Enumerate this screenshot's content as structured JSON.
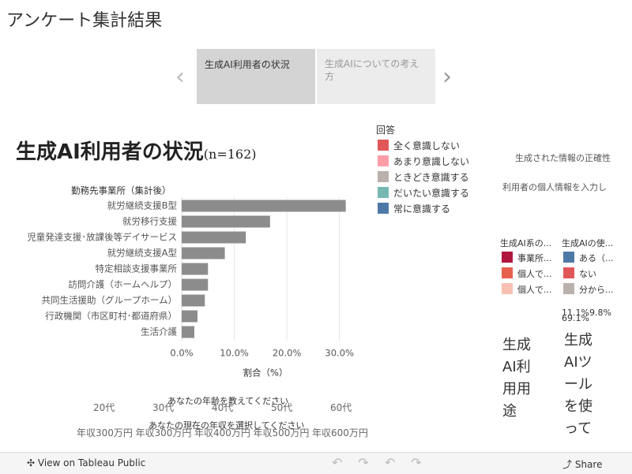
{
  "header": {
    "title": "アンケート集計結果"
  },
  "tabs": [
    "生成AI利用者の状況",
    "生成AIについての考え方"
  ],
  "chart_data": {
    "type": "bar",
    "orientation": "horizontal",
    "title": "生成AI利用者の状況",
    "subtitle": "(n=162)",
    "y_label": "勤務先事業所（集計後）",
    "x_label": "割合（%）",
    "categories": [
      "就労継続支援B型",
      "就労移行支援",
      "児童発達支援･放課後等デイサービス",
      "就労継続支援A型",
      "特定相談支援事業所",
      "訪問介護（ホームヘルプ）",
      "共同生活援助（グループホーム）",
      "行政機関（市区町村･都道府県）",
      "生活介護"
    ],
    "values": [
      31.2,
      16.8,
      12.2,
      8.2,
      5.0,
      5.0,
      4.4,
      3.0,
      2.4
    ],
    "color": "#8c8c8c",
    "xlim": [
      0,
      32
    ],
    "xticks": [
      {
        "value": 0,
        "label": "0.0%"
      },
      {
        "value": 10,
        "label": "10.0%"
      },
      {
        "value": 20,
        "label": "20.0%"
      },
      {
        "value": 30,
        "label": "30.0%"
      }
    ],
    "grid": true
  },
  "legend": {
    "title": "回答",
    "items": [
      {
        "name": "全く意識しない",
        "color": "#e15759"
      },
      {
        "name": "あまり意識しない",
        "color": "#ff9da7"
      },
      {
        "name": "ときどき意識する",
        "color": "#bab0ac"
      },
      {
        "name": "だいたい意識する",
        "color": "#76b7b2"
      },
      {
        "name": "常に意識する",
        "color": "#4e79a7"
      }
    ]
  },
  "right_panel": {
    "texts": [
      "生成された情報の正確性",
      "利用者の個人情報を入力し"
    ],
    "legend1": {
      "title": "生成AI系の...",
      "items": [
        {
          "name": "事業所...",
          "color": "#b0173f"
        },
        {
          "name": "個人で...",
          "color": "#e8604c"
        },
        {
          "name": "個人で...",
          "color": "#f7c0b3"
        }
      ]
    },
    "legend2": {
      "title": "生成AIの使...",
      "items": [
        {
          "name": "ある（...",
          "color": "#4e79a7"
        },
        {
          "name": "ない",
          "color": "#e15759"
        },
        {
          "name": "分から...",
          "color": "#bab0ac"
        }
      ]
    },
    "pie_labels": [
      "11.1%",
      "9.8%",
      "69.1%"
    ],
    "vertical1": "生成AI利用用途",
    "vertical2": "生成AIツールを使って"
  },
  "filters": {
    "age": {
      "title": "あなたの年齢を教えてください",
      "options": [
        "20代",
        "30代",
        "40代",
        "50代",
        "60代"
      ]
    },
    "income": {
      "title": "あなたの現在の年収を選択してください",
      "options": [
        "年収300万円",
        "年収300万円",
        "年収400万円",
        "年収500万円",
        "年収600万円"
      ]
    }
  },
  "toolbar": {
    "view": "View on Tableau Public",
    "share": "Share"
  }
}
